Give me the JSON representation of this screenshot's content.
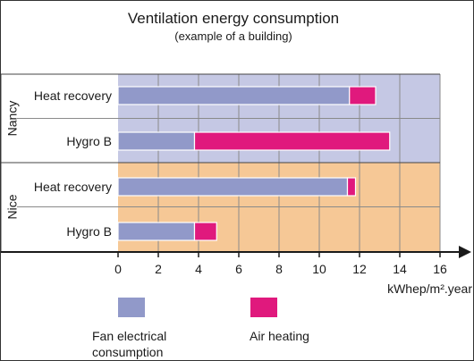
{
  "chart_data": {
    "type": "bar",
    "stacked": true,
    "orientation": "horizontal",
    "title": "Ventilation energy consumption",
    "subtitle": "(example of a building)",
    "xlabel": "kWhep/m².year",
    "xlim": [
      0,
      16
    ],
    "xticks": [
      0,
      2,
      4,
      6,
      8,
      10,
      12,
      14,
      16
    ],
    "grid": true,
    "groups": [
      {
        "name": "Nancy",
        "categories": [
          "Heat recovery",
          "Hygro B"
        ],
        "background": "#c5c8e4"
      },
      {
        "name": "Nice",
        "categories": [
          "Heat recovery",
          "Hygro B"
        ],
        "background": "#f6c896"
      }
    ],
    "series": [
      {
        "name": "Fan electrical consumption",
        "legend_lines": [
          "Fan electrical",
          "consumption"
        ],
        "color": "#9199c9",
        "values": [
          11.5,
          3.8,
          11.4,
          3.8
        ]
      },
      {
        "name": "Air heating",
        "legend_lines": [
          "Air heating"
        ],
        "color": "#e0197d",
        "values": [
          1.3,
          9.7,
          0.4,
          1.1
        ]
      }
    ],
    "legend_position": "bottom"
  }
}
